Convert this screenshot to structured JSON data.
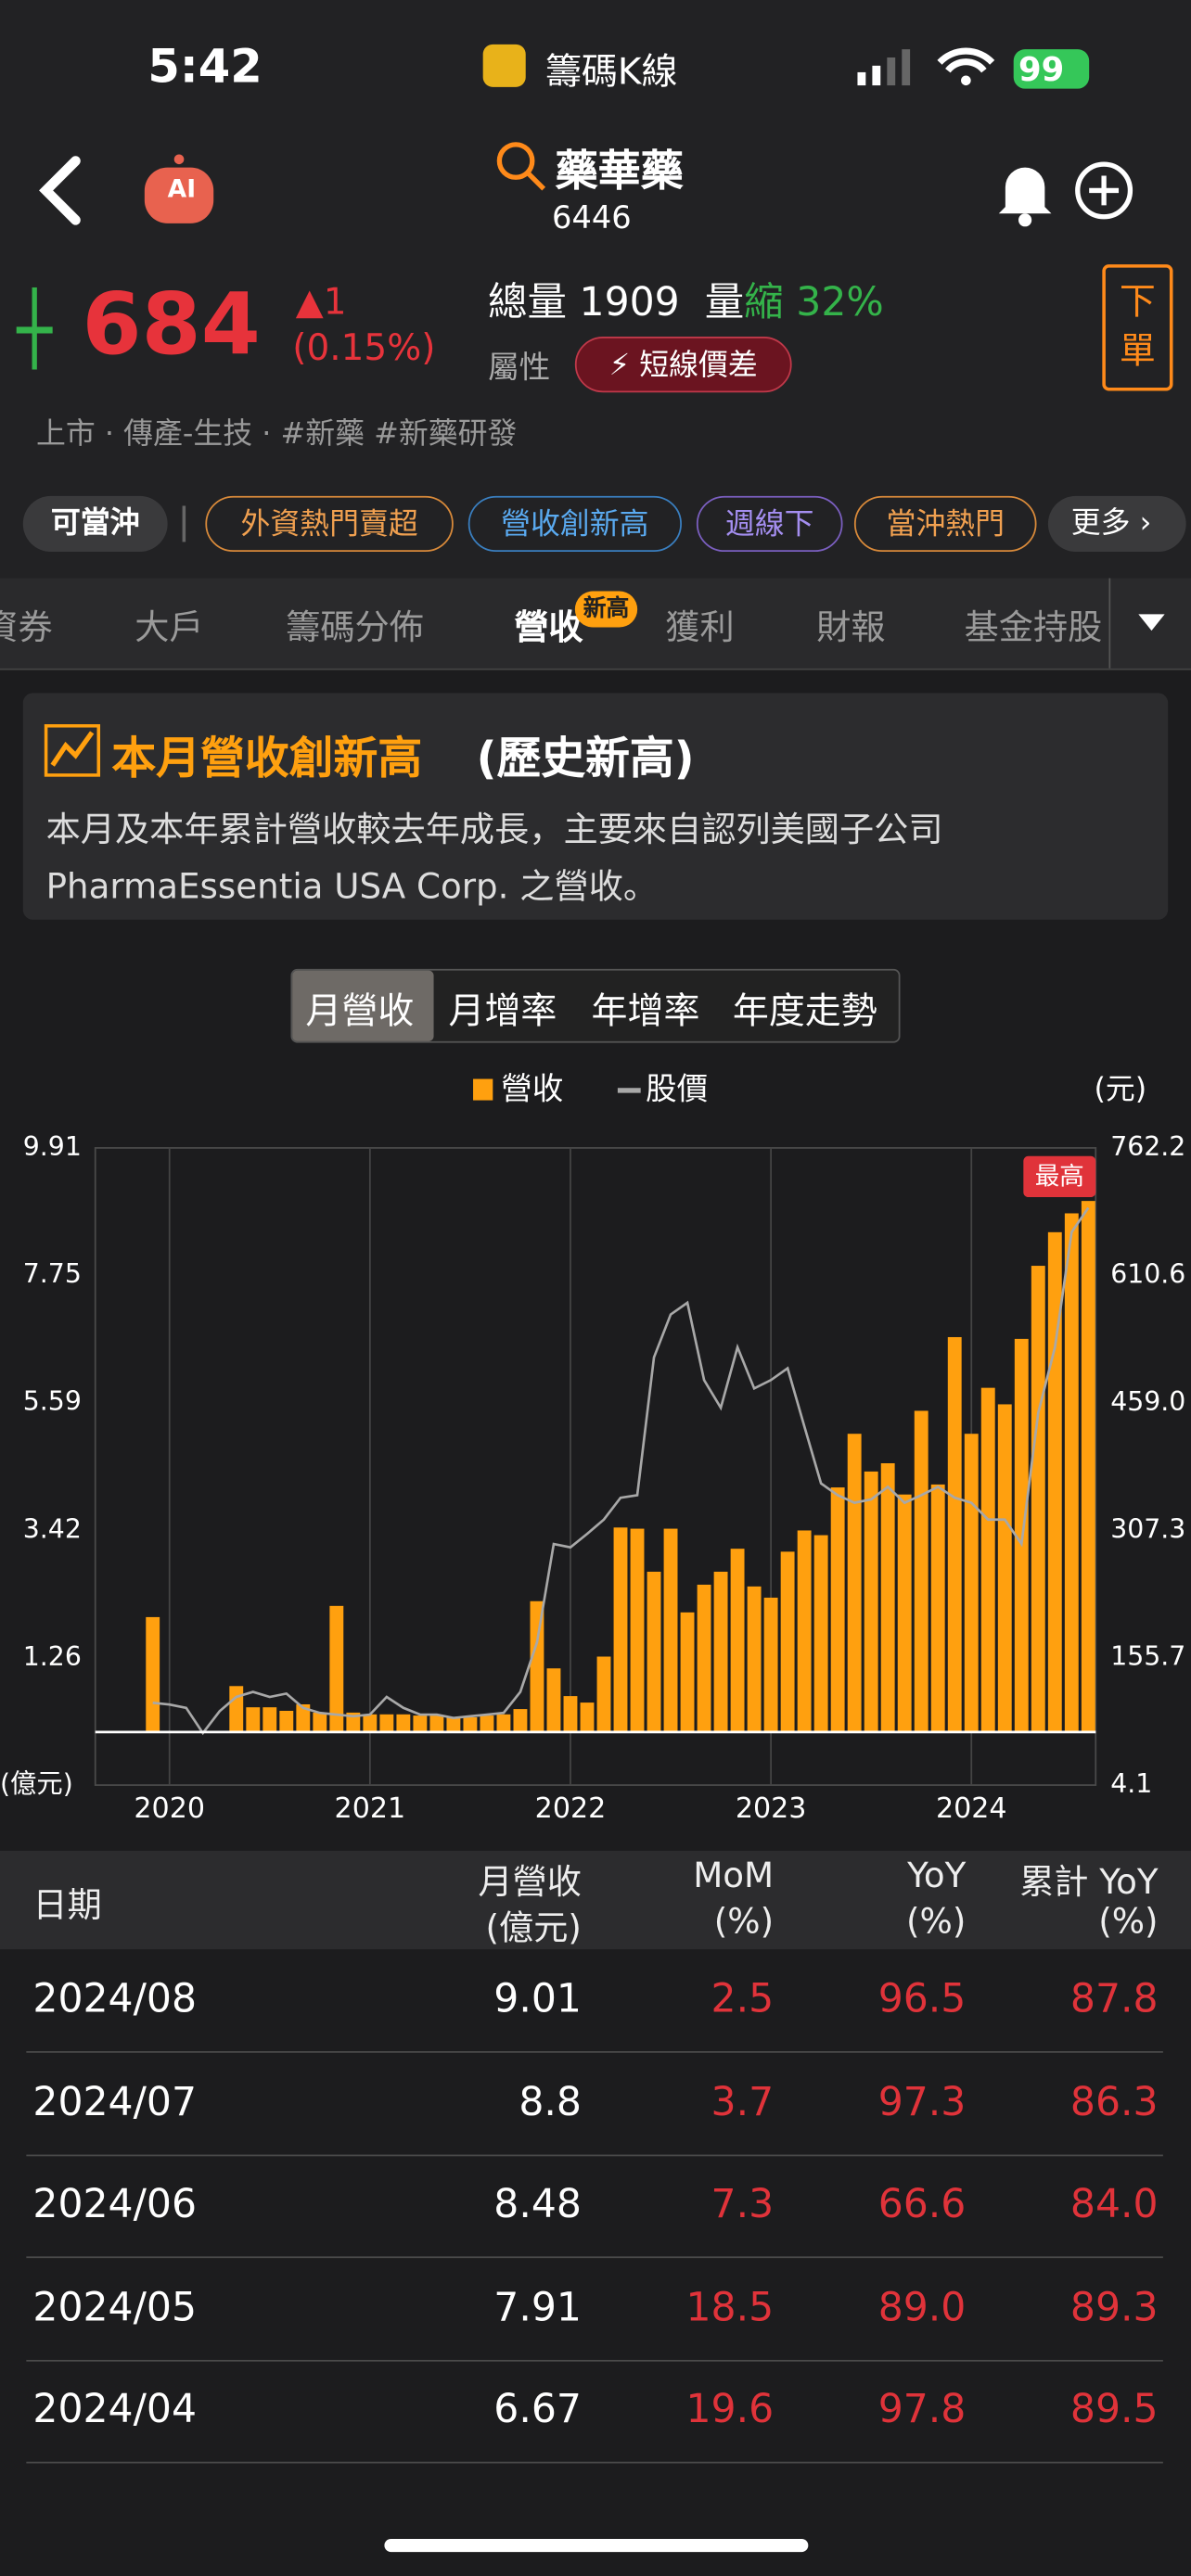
{
  "status_bar": {
    "time": "5:42",
    "app": "籌碼K線",
    "battery": "99"
  },
  "header": {
    "ai_label": "AI",
    "name": "藥華藥",
    "code": "6446"
  },
  "quote": {
    "price": "684",
    "change": "▲1",
    "change_pct": "(0.15%)",
    "volume_label": "總量",
    "volume": "1909",
    "volume_change_label": "量",
    "volume_change_word": "縮",
    "volume_change": "32%",
    "attribute_label": "屬性",
    "attribute": "短線價差",
    "order_button": [
      "下",
      "單"
    ],
    "industry": "上市 · 傳產-生技 · #新藥  #新藥研發"
  },
  "tags": [
    "可當沖",
    "外資熱門賣超",
    "營收創新高",
    "週線下",
    "當沖熱門",
    "更多"
  ],
  "tabs": {
    "items": [
      "資券",
      "大戶",
      "籌碼分佈",
      "營收",
      "獲利",
      "財報",
      "基金持股"
    ],
    "badge": "新高"
  },
  "banner": {
    "title": "本月營收創新高",
    "title_note": "(歷史新高)",
    "text": "本月及本年累計營收較去年成長，主要來自認列美國子公司 PharmaEssentia USA Corp. 之營收。"
  },
  "chart_tabs": [
    "月營收",
    "月增率",
    "年增率",
    "年度走勢"
  ],
  "chart_data": {
    "type": "combo",
    "ylabel": "(億元)",
    "y2label": "(元)",
    "annotation": "最高",
    "categories": [
      null,
      "2020",
      null,
      null,
      null,
      null,
      null,
      null,
      null,
      null,
      null,
      null,
      null,
      "2021",
      null,
      null,
      null,
      null,
      null,
      null,
      null,
      null,
      null,
      null,
      null,
      "2022",
      null,
      null,
      null,
      null,
      null,
      null,
      null,
      null,
      null,
      null,
      null,
      "2023",
      null,
      null,
      null,
      null,
      null,
      null,
      null,
      null,
      null,
      null,
      null,
      "2024",
      null,
      null,
      null,
      null,
      null,
      null,
      null
    ],
    "series": [
      {
        "name": "營收",
        "type": "bar",
        "color": "#ffa00f",
        "values": [
          1.95,
          null,
          null,
          null,
          null,
          0.78,
          0.42,
          0.42,
          0.36,
          0.47,
          0.33,
          2.14,
          0.33,
          0.3,
          0.3,
          0.3,
          0.28,
          0.28,
          0.25,
          0.25,
          0.28,
          0.3,
          0.39,
          2.22,
          1.08,
          0.61,
          0.5,
          1.28,
          3.47,
          3.45,
          2.72,
          3.45,
          2.03,
          2.5,
          2.72,
          3.11,
          2.47,
          2.28,
          3.06,
          3.42,
          3.34,
          4.15,
          5.06,
          4.42,
          4.56,
          4.03,
          5.45,
          4.2,
          6.7,
          5.06,
          5.84,
          5.56,
          6.67,
          7.91,
          8.48,
          8.8,
          9.01
        ]
      },
      {
        "name": "股價",
        "type": "line",
        "axis": "y2",
        "color": "#a8a8a8",
        "values": [
          102,
          100,
          96,
          66,
          92,
          109,
          115,
          109,
          113,
          96,
          90,
          88,
          86,
          88,
          109,
          96,
          88,
          88,
          84,
          86,
          88,
          90,
          115,
          174,
          291,
          287,
          303,
          320,
          346,
          349,
          513,
          564,
          578,
          486,
          453,
          525,
          476,
          486,
          500,
          431,
          363,
          349,
          340,
          344,
          359,
          340,
          349,
          359,
          346,
          340,
          320,
          320,
          291,
          447,
          525,
          662,
          691
        ]
      }
    ],
    "ylim": [
      -0.9,
      9.91
    ],
    "yticks": [
      9.91,
      7.75,
      5.59,
      3.42,
      1.26
    ],
    "y2lim": [
      4.1,
      762.2
    ],
    "y2ticks": [
      762.2,
      610.6,
      {
        "value": 459,
        "label": "459.0"
      },
      307.3,
      155.7,
      4.1
    ],
    "grid": true
  },
  "table": {
    "headers": [
      [
        "日期"
      ],
      [
        "月營收",
        "(億元)"
      ],
      [
        "MoM",
        "(%)"
      ],
      [
        "YoY",
        "(%)"
      ],
      [
        "累計 YoY",
        "(%)"
      ]
    ],
    "rows": [
      [
        "2024/08",
        "9.01",
        "2.5",
        "96.5",
        "87.8"
      ],
      [
        "2024/07",
        "8.8",
        "3.7",
        "97.3",
        "86.3"
      ],
      [
        "2024/06",
        "8.48",
        "7.3",
        "66.6",
        "84.0"
      ],
      [
        "2024/05",
        "7.91",
        "18.5",
        "89.0",
        "89.3"
      ],
      [
        "2024/04",
        "6.67",
        "19.6",
        "97.8",
        "89.5"
      ]
    ]
  }
}
